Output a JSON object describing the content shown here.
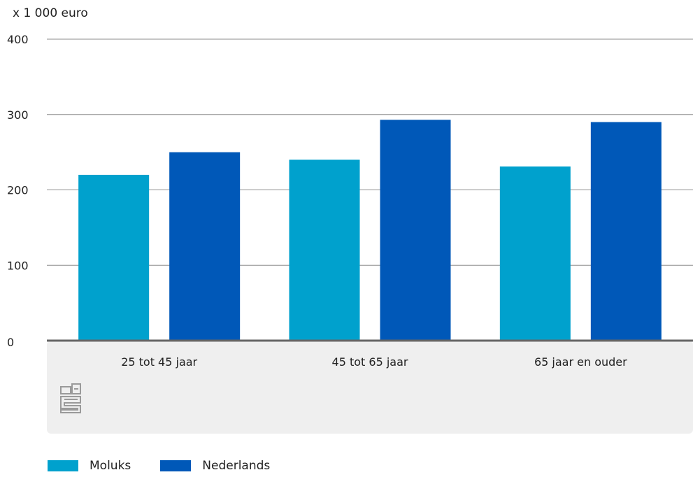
{
  "chart_data": {
    "type": "bar",
    "unit_label": "x 1 000 euro",
    "categories": [
      "25 tot 45 jaar",
      "45 tot 65 jaar",
      "65 jaar en ouder"
    ],
    "series": [
      {
        "name": "Moluks",
        "values": [
          220,
          240,
          231
        ],
        "color": "#00a1cd"
      },
      {
        "name": "Nederlands",
        "values": [
          250,
          293,
          290
        ],
        "color": "#0058b8"
      }
    ],
    "ylim": [
      0,
      400
    ],
    "yticks": [
      "0",
      "100",
      "200",
      "300",
      "400"
    ],
    "grid": true,
    "legend_position": "bottom-left"
  },
  "logo": {
    "name": "cbs-logo-icon",
    "text": "cbs"
  }
}
